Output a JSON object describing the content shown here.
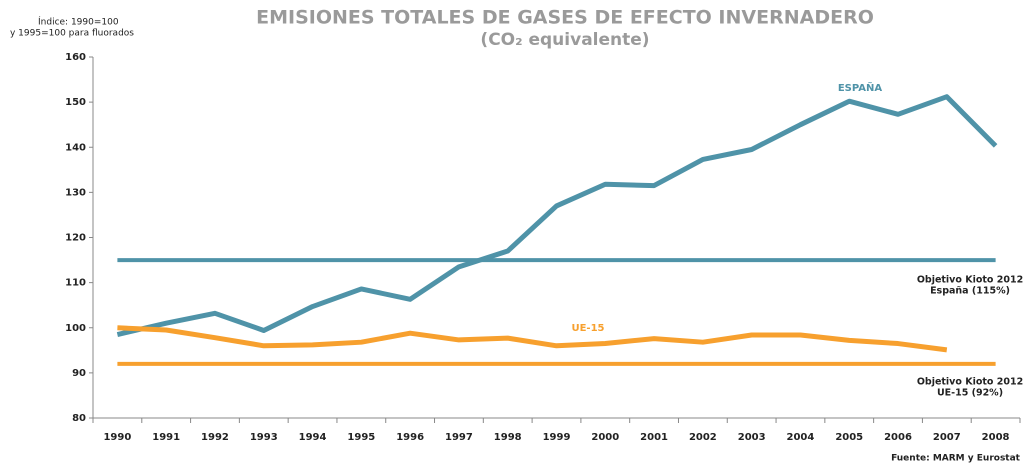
{
  "chart_data": {
    "type": "line",
    "title": "EMISIONES TOTALES DE GASES DE EFECTO INVERNADERO",
    "subtitle": "(CO₂ equivalente)",
    "y_axis_label": [
      "Índice: 1990=100",
      "y 1995=100 para fluorados"
    ],
    "source": "Fuente: MARM y Eurostat",
    "categories": [
      "1990",
      "1991",
      "1992",
      "1993",
      "1994",
      "1995",
      "1996",
      "1997",
      "1998",
      "1999",
      "2000",
      "2001",
      "2002",
      "2003",
      "2004",
      "2005",
      "2006",
      "2007",
      "2008"
    ],
    "series": [
      {
        "name": "ESPAÑA",
        "color": "#4f93a8",
        "values": [
          98.5,
          101,
          103.2,
          99.4,
          104.7,
          108.6,
          106.3,
          113.5,
          117,
          127,
          131.8,
          131.5,
          137.3,
          139.5,
          145,
          150.2,
          147.3,
          151.2,
          140.3
        ]
      },
      {
        "name": "UE-15",
        "color": "#f7a02e",
        "values": [
          100,
          99.5,
          97.8,
          96,
          96.2,
          96.8,
          98.8,
          97.3,
          97.7,
          96,
          96.5,
          97.6,
          96.8,
          98.4,
          98.4,
          97.2,
          96.5,
          95.1,
          null
        ]
      }
    ],
    "reference_lines": [
      {
        "value": 115,
        "color": "#4f93a8",
        "label": [
          "Objetivo Kioto 2012",
          "España (115%)"
        ]
      },
      {
        "value": 92,
        "color": "#f7a02e",
        "label": [
          "Objetivo Kioto 2012",
          "UE-15 (92%)"
        ]
      }
    ],
    "ylim": [
      80,
      160
    ],
    "yticks": [
      80,
      90,
      100,
      110,
      120,
      130,
      140,
      150,
      160
    ]
  }
}
